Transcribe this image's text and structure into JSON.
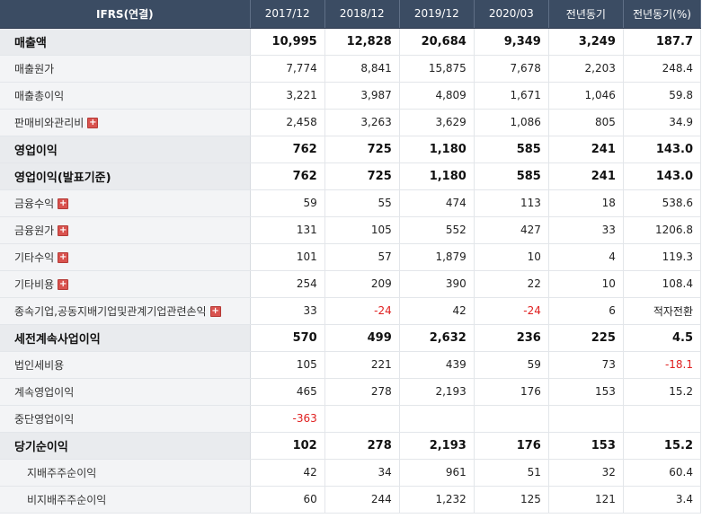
{
  "header": {
    "title": "IFRS(연결)",
    "columns": [
      "2017/12",
      "2018/12",
      "2019/12",
      "2020/03",
      "전년동기",
      "전년동기(%)"
    ]
  },
  "rows": [
    {
      "label": "매출액",
      "bold": true,
      "indent": false,
      "expandable": false,
      "values": [
        "10,995",
        "12,828",
        "20,684",
        "9,349",
        "3,249",
        "187.7"
      ],
      "neg": [
        false,
        false,
        false,
        false,
        false,
        false
      ]
    },
    {
      "label": "매출원가",
      "bold": false,
      "indent": false,
      "expandable": false,
      "values": [
        "7,774",
        "8,841",
        "15,875",
        "7,678",
        "2,203",
        "248.4"
      ],
      "neg": [
        false,
        false,
        false,
        false,
        false,
        false
      ]
    },
    {
      "label": "매출총이익",
      "bold": false,
      "indent": false,
      "expandable": false,
      "values": [
        "3,221",
        "3,987",
        "4,809",
        "1,671",
        "1,046",
        "59.8"
      ],
      "neg": [
        false,
        false,
        false,
        false,
        false,
        false
      ]
    },
    {
      "label": "판매비와관리비",
      "bold": false,
      "indent": false,
      "expandable": true,
      "values": [
        "2,458",
        "3,263",
        "3,629",
        "1,086",
        "805",
        "34.9"
      ],
      "neg": [
        false,
        false,
        false,
        false,
        false,
        false
      ]
    },
    {
      "label": "영업이익",
      "bold": true,
      "indent": false,
      "expandable": false,
      "values": [
        "762",
        "725",
        "1,180",
        "585",
        "241",
        "143.0"
      ],
      "neg": [
        false,
        false,
        false,
        false,
        false,
        false
      ]
    },
    {
      "label": "영업이익(발표기준)",
      "bold": true,
      "indent": false,
      "expandable": false,
      "values": [
        "762",
        "725",
        "1,180",
        "585",
        "241",
        "143.0"
      ],
      "neg": [
        false,
        false,
        false,
        false,
        false,
        false
      ]
    },
    {
      "label": "금융수익",
      "bold": false,
      "indent": false,
      "expandable": true,
      "values": [
        "59",
        "55",
        "474",
        "113",
        "18",
        "538.6"
      ],
      "neg": [
        false,
        false,
        false,
        false,
        false,
        false
      ]
    },
    {
      "label": "금융원가",
      "bold": false,
      "indent": false,
      "expandable": true,
      "values": [
        "131",
        "105",
        "552",
        "427",
        "33",
        "1206.8"
      ],
      "neg": [
        false,
        false,
        false,
        false,
        false,
        false
      ]
    },
    {
      "label": "기타수익",
      "bold": false,
      "indent": false,
      "expandable": true,
      "values": [
        "101",
        "57",
        "1,879",
        "10",
        "4",
        "119.3"
      ],
      "neg": [
        false,
        false,
        false,
        false,
        false,
        false
      ]
    },
    {
      "label": "기타비용",
      "bold": false,
      "indent": false,
      "expandable": true,
      "values": [
        "254",
        "209",
        "390",
        "22",
        "10",
        "108.4"
      ],
      "neg": [
        false,
        false,
        false,
        false,
        false,
        false
      ]
    },
    {
      "label": "종속기업,공동지배기업및관계기업관련손익",
      "bold": false,
      "indent": false,
      "expandable": true,
      "values": [
        "33",
        "-24",
        "42",
        "-24",
        "6",
        "적자전환"
      ],
      "neg": [
        false,
        true,
        false,
        true,
        false,
        false
      ]
    },
    {
      "label": "세전계속사업이익",
      "bold": true,
      "indent": false,
      "expandable": false,
      "values": [
        "570",
        "499",
        "2,632",
        "236",
        "225",
        "4.5"
      ],
      "neg": [
        false,
        false,
        false,
        false,
        false,
        false
      ]
    },
    {
      "label": "법인세비용",
      "bold": false,
      "indent": false,
      "expandable": false,
      "values": [
        "105",
        "221",
        "439",
        "59",
        "73",
        "-18.1"
      ],
      "neg": [
        false,
        false,
        false,
        false,
        false,
        true
      ]
    },
    {
      "label": "계속영업이익",
      "bold": false,
      "indent": false,
      "expandable": false,
      "values": [
        "465",
        "278",
        "2,193",
        "176",
        "153",
        "15.2"
      ],
      "neg": [
        false,
        false,
        false,
        false,
        false,
        false
      ]
    },
    {
      "label": "중단영업이익",
      "bold": false,
      "indent": false,
      "expandable": false,
      "values": [
        "-363",
        "",
        "",
        "",
        "",
        ""
      ],
      "neg": [
        true,
        false,
        false,
        false,
        false,
        false
      ]
    },
    {
      "label": "당기순이익",
      "bold": true,
      "indent": false,
      "expandable": false,
      "values": [
        "102",
        "278",
        "2,193",
        "176",
        "153",
        "15.2"
      ],
      "neg": [
        false,
        false,
        false,
        false,
        false,
        false
      ]
    },
    {
      "label": "지배주주순이익",
      "bold": false,
      "indent": true,
      "expandable": false,
      "values": [
        "42",
        "34",
        "961",
        "51",
        "32",
        "60.4"
      ],
      "neg": [
        false,
        false,
        false,
        false,
        false,
        false
      ]
    },
    {
      "label": "비지배주주순이익",
      "bold": false,
      "indent": true,
      "expandable": false,
      "values": [
        "60",
        "244",
        "1,232",
        "125",
        "121",
        "3.4"
      ],
      "neg": [
        false,
        false,
        false,
        false,
        false,
        false
      ]
    }
  ],
  "expand_icon": "plus-icon",
  "colors": {
    "header_bg": "#3b4c63",
    "negative": "#e02020",
    "label_bg": "#f3f4f6",
    "plus_icon": "#d9534f"
  }
}
